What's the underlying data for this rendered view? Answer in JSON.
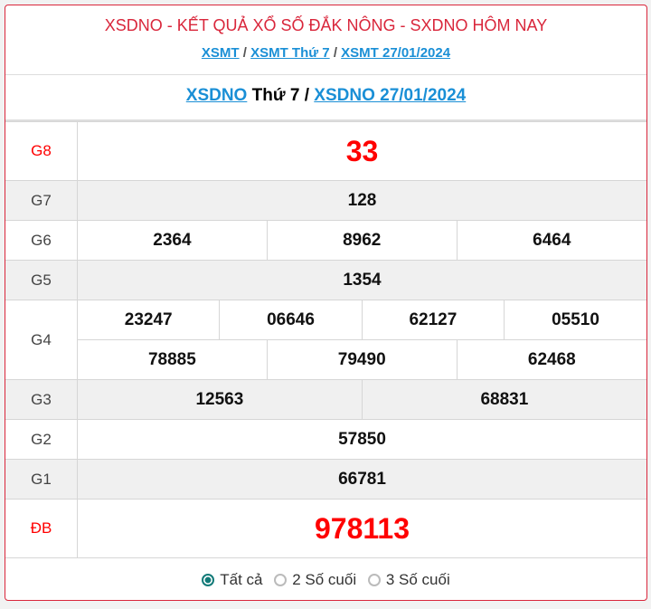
{
  "header": {
    "title": "XSDNO - KẾT QUẢ XỔ SỐ ĐẮK NÔNG - SXDNO HÔM NAY",
    "breadcrumb": [
      "XSMT",
      "XSMT Thứ 7",
      "XSMT 27/01/2024"
    ],
    "sep": "/"
  },
  "subtitle": {
    "link1": "XSDNO",
    "text": " Thứ 7 / ",
    "link2": "XSDNO 27/01/2024"
  },
  "prizes": {
    "g8": {
      "label": "G8",
      "values": [
        "33"
      ]
    },
    "g7": {
      "label": "G7",
      "values": [
        "128"
      ]
    },
    "g6": {
      "label": "G6",
      "values": [
        "2364",
        "8962",
        "6464"
      ]
    },
    "g5": {
      "label": "G5",
      "values": [
        "1354"
      ]
    },
    "g4": {
      "label": "G4",
      "values": [
        "23247",
        "06646",
        "62127",
        "05510",
        "78885",
        "79490",
        "62468"
      ]
    },
    "g3": {
      "label": "G3",
      "values": [
        "12563",
        "68831"
      ]
    },
    "g2": {
      "label": "G2",
      "values": [
        "57850"
      ]
    },
    "g1": {
      "label": "G1",
      "values": [
        "66781"
      ]
    },
    "db": {
      "label": "ĐB",
      "values": [
        "978113"
      ]
    }
  },
  "filter": {
    "options": [
      "Tất cả",
      "2 Số cuối",
      "3 Số cuối"
    ],
    "selected": "Tất cả"
  },
  "colors": {
    "accent": "#d9263b",
    "link": "#1a8fd6",
    "radio": "#127a78"
  }
}
